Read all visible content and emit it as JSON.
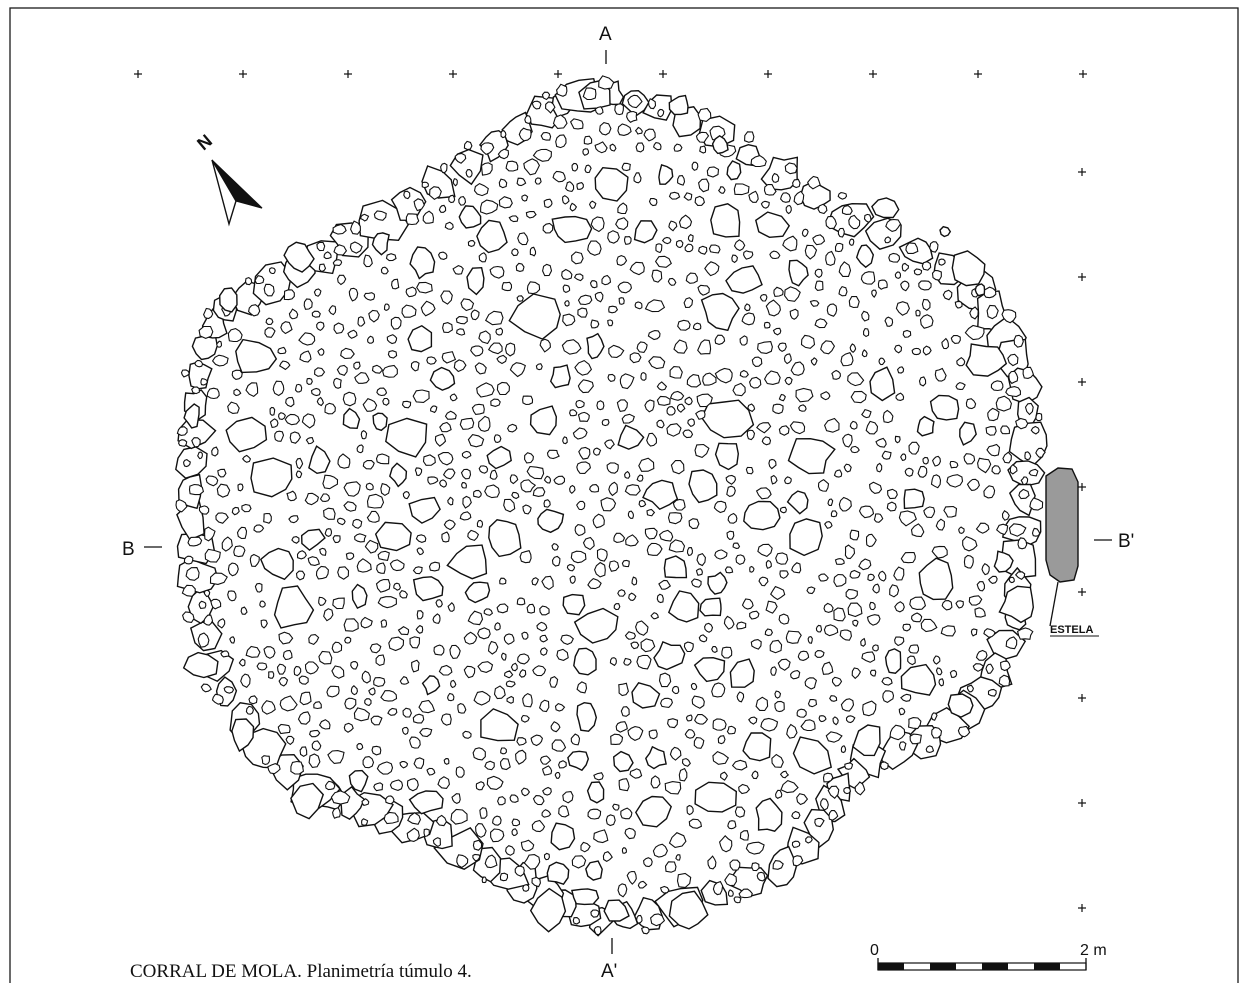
{
  "figure": {
    "caption": "CORRAL DE MOLA. Planimetría túmulo 4.",
    "north_label": "N",
    "section_labels": {
      "a": "A",
      "a_prime": "A'",
      "b": "B",
      "b_prime": "B'"
    },
    "stele_label": "ESTELA",
    "scale_bar": {
      "start_label": "0",
      "end_label": "2 m"
    },
    "colors": {
      "line": "#111111",
      "stele_fill": "#9a9a9a",
      "background": "#ffffff"
    },
    "icons": [
      "north-arrow-icon",
      "grid-cross-icon"
    ]
  }
}
